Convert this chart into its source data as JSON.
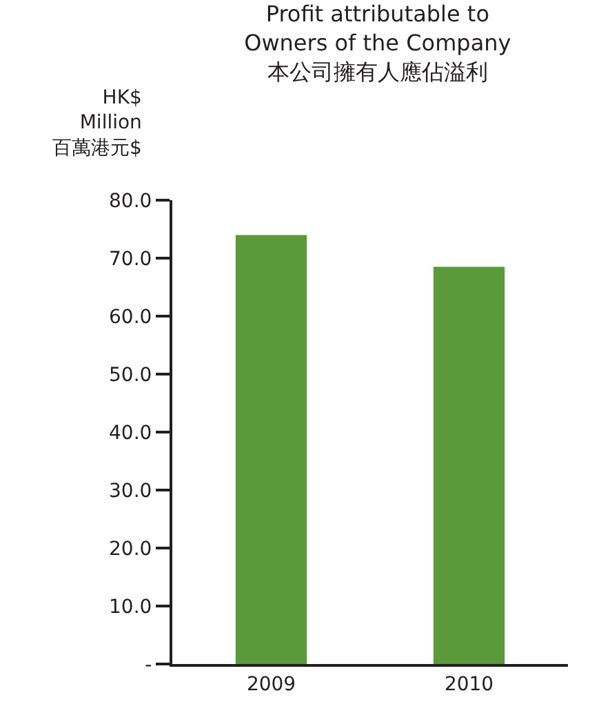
{
  "chart_data": {
    "type": "bar",
    "title": "Profit attributable to\nOwners of the Company\n本公司擁有人應佔溢利",
    "ylabel": "HK$\nMillion\n百萬港元$",
    "categories": [
      "2009",
      "2010"
    ],
    "values": [
      74.0,
      68.5
    ],
    "color": "#5a9a3a",
    "ylim": [
      0,
      80
    ],
    "yticks": [
      {
        "value": 0,
        "label": "-"
      },
      {
        "value": 10,
        "label": "10.0"
      },
      {
        "value": 20,
        "label": "20.0"
      },
      {
        "value": 30,
        "label": "30.0"
      },
      {
        "value": 40,
        "label": "40.0"
      },
      {
        "value": 50,
        "label": "50.0"
      },
      {
        "value": 60,
        "label": "60.0"
      },
      {
        "value": 70,
        "label": "70.0"
      },
      {
        "value": 80,
        "label": "80.0"
      }
    ]
  }
}
